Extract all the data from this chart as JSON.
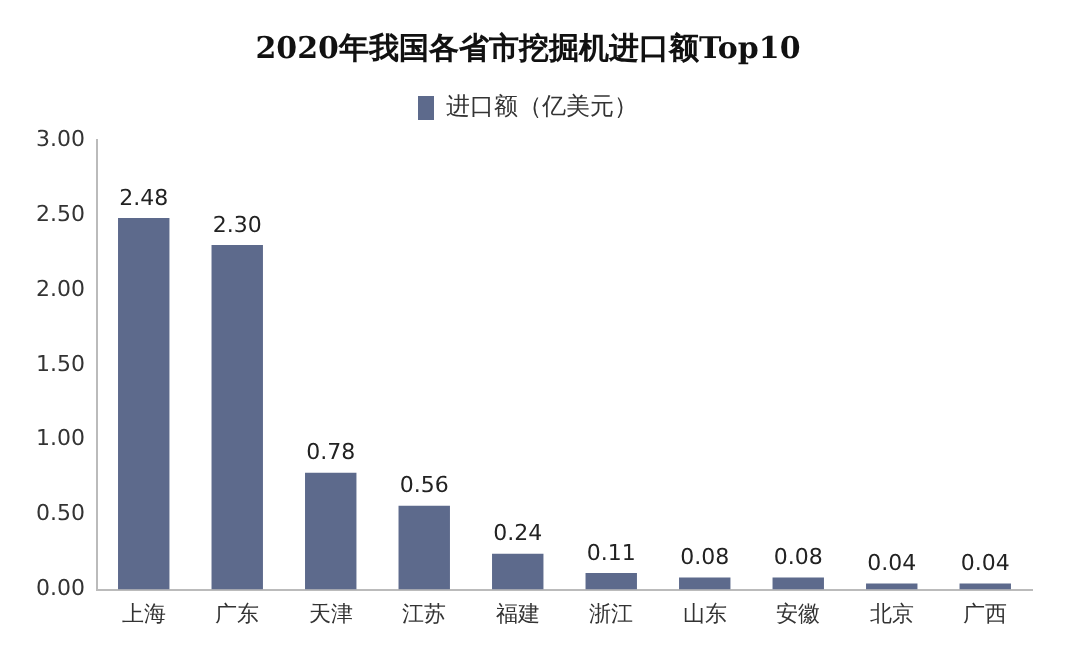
{
  "chart_data": {
    "type": "bar",
    "title": "2020年我国各省市挖掘机进口额Top10",
    "categories": [
      "上海",
      "广东",
      "天津",
      "江苏",
      "福建",
      "浙江",
      "山东",
      "安徽",
      "北京",
      "广西"
    ],
    "series": [
      {
        "name": "进口额（亿美元）",
        "color": "#5d6a8c",
        "values": [
          2.48,
          2.3,
          0.78,
          0.56,
          0.24,
          0.11,
          0.08,
          0.08,
          0.04,
          0.04
        ],
        "value_labels": [
          "2.48",
          "2.30",
          "0.78",
          "0.56",
          "0.24",
          "0.11",
          "0.08",
          "0.08",
          "0.04",
          "0.04"
        ]
      }
    ],
    "ylim": [
      0,
      3
    ],
    "yticks": [
      {
        "value": 0,
        "label": "0.00"
      },
      {
        "value": 0.5,
        "label": "0.50"
      },
      {
        "value": 1,
        "label": "1.00"
      },
      {
        "value": 1.5,
        "label": "1.50"
      },
      {
        "value": 2,
        "label": "2.00"
      },
      {
        "value": 2.5,
        "label": "2.50"
      },
      {
        "value": 3,
        "label": "3.00"
      }
    ],
    "grid": false,
    "legend": "top"
  }
}
